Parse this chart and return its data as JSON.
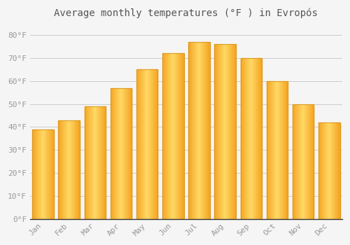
{
  "title": "Average monthly temperatures (°F ) in Evropós",
  "months": [
    "Jan",
    "Feb",
    "Mar",
    "Apr",
    "May",
    "Jun",
    "Jul",
    "Aug",
    "Sep",
    "Oct",
    "Nov",
    "Dec"
  ],
  "values": [
    39,
    43,
    49,
    57,
    65,
    72,
    77,
    76,
    70,
    60,
    50,
    42
  ],
  "bar_color_center": "#FFD966",
  "bar_color_edge": "#F5A623",
  "ylim": [
    0,
    85
  ],
  "yticks": [
    0,
    10,
    20,
    30,
    40,
    50,
    60,
    70,
    80
  ],
  "ylabel_suffix": "°F",
  "background_color": "#f5f5f5",
  "grid_color": "#cccccc",
  "title_fontsize": 10,
  "tick_fontsize": 8,
  "title_color": "#555555",
  "tick_color": "#999999",
  "figsize": [
    5.0,
    3.5
  ],
  "dpi": 100,
  "bar_width": 0.82
}
